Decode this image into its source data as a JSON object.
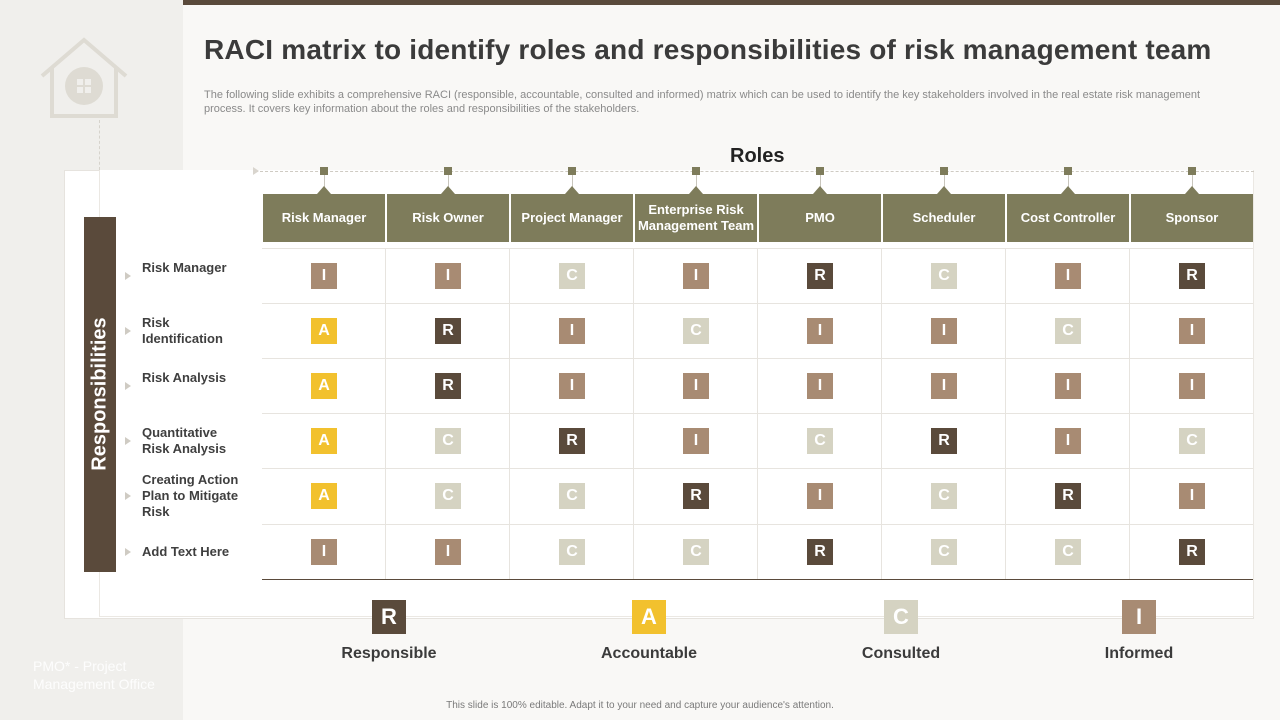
{
  "title": "RACI matrix to identify roles and responsibilities of risk management team",
  "subtitle": "The following slide exhibits a comprehensive RACI (responsible, accountable, consulted and informed) matrix which can be used to identify the key stakeholders involved in the real estate risk management process. It covers key information about the roles and responsibilities of the stakeholders.",
  "roles_title": "Roles",
  "responsibilities_title": "Responsibilities",
  "roles": [
    "Risk Manager",
    "Risk Owner",
    "Project Manager",
    "Enterprise Risk Management Team",
    "PMO",
    "Scheduler",
    "Cost Controller",
    "Sponsor"
  ],
  "responsibilities": [
    "Risk Manager",
    "Risk Identification",
    "Risk Analysis",
    "Quantitative Risk Analysis",
    "Creating Action Plan to Mitigate Risk",
    "Add Text Here"
  ],
  "matrix": [
    [
      "I",
      "I",
      "C",
      "I",
      "R",
      "C",
      "I",
      "R"
    ],
    [
      "A",
      "R",
      "I",
      "C",
      "I",
      "I",
      "C",
      "I"
    ],
    [
      "A",
      "R",
      "I",
      "I",
      "I",
      "I",
      "I",
      "I"
    ],
    [
      "A",
      "C",
      "R",
      "I",
      "C",
      "R",
      "I",
      "C"
    ],
    [
      "A",
      "C",
      "C",
      "R",
      "I",
      "C",
      "R",
      "I"
    ],
    [
      "I",
      "I",
      "C",
      "C",
      "R",
      "C",
      "C",
      "R"
    ]
  ],
  "legend": [
    {
      "letter": "R",
      "label": "Responsible"
    },
    {
      "letter": "A",
      "label": "Accountable"
    },
    {
      "letter": "C",
      "label": "Consulted"
    },
    {
      "letter": "I",
      "label": "Informed"
    }
  ],
  "colors": {
    "R": "#5a4a3b",
    "A": "#f2c12e",
    "C": "#d5d3c2",
    "I": "#a88b73",
    "header": "#7e7c5b"
  },
  "footnote_left": "PMO* - Project Management Office",
  "bottom_note": "This slide is 100% editable. Adapt it to your need and capture your audience's attention.",
  "icons": {
    "house": "house-icon"
  }
}
